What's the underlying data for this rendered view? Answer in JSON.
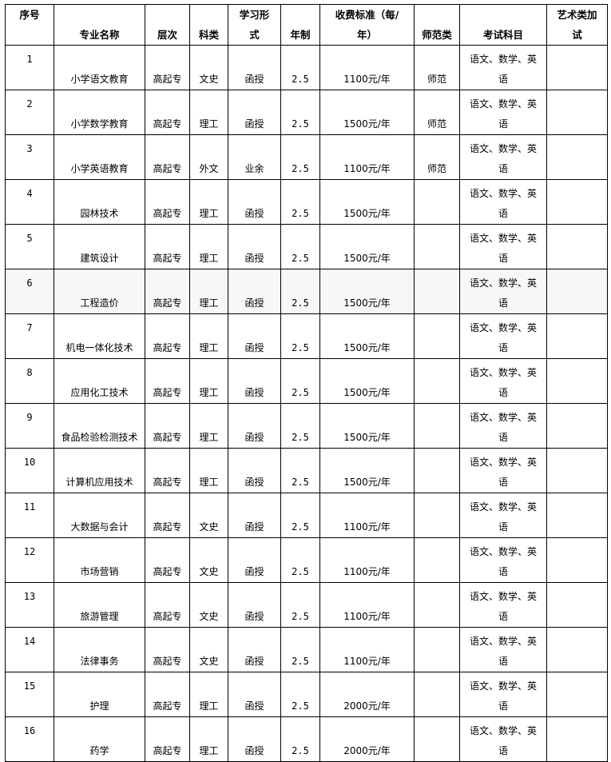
{
  "headers": {
    "no": "序号",
    "major": "专业名称",
    "level": "层次",
    "category": "科类",
    "mode_1": "学习形",
    "mode_2": "式",
    "years": "年制",
    "fee_1": "收费标准（每/",
    "fee_2": "年）",
    "normal": "师范类",
    "subjects": "考试科目",
    "art_1": "艺术类加",
    "art_2": "试"
  },
  "rows": [
    {
      "no": "1",
      "major": "小学语文教育",
      "level": "高起专",
      "category": "文史",
      "mode": "函授",
      "years": "2.5",
      "fee": "1100元/年",
      "normal": "师范",
      "subjects_1": "语文、数学、英",
      "subjects_2": "语",
      "art": ""
    },
    {
      "no": "2",
      "major": "小学数学教育",
      "level": "高起专",
      "category": "理工",
      "mode": "函授",
      "years": "2.5",
      "fee": "1500元/年",
      "normal": "师范",
      "subjects_1": "语文、数学、英",
      "subjects_2": "语",
      "art": ""
    },
    {
      "no": "3",
      "major": "小学英语教育",
      "level": "高起专",
      "category": "外文",
      "mode": "业余",
      "years": "2.5",
      "fee": "1100元/年",
      "normal": "师范",
      "subjects_1": "语文、数学、英",
      "subjects_2": "语",
      "art": ""
    },
    {
      "no": "4",
      "major": "园林技术",
      "level": "高起专",
      "category": "理工",
      "mode": "函授",
      "years": "2.5",
      "fee": "1500元/年",
      "normal": "",
      "subjects_1": "语文、数学、英",
      "subjects_2": "语",
      "art": ""
    },
    {
      "no": "5",
      "major": "建筑设计",
      "level": "高起专",
      "category": "理工",
      "mode": "函授",
      "years": "2.5",
      "fee": "1500元/年",
      "normal": "",
      "subjects_1": "语文、数学、英",
      "subjects_2": "语",
      "art": ""
    },
    {
      "no": "6",
      "major": "工程造价",
      "level": "高起专",
      "category": "理工",
      "mode": "函授",
      "years": "2.5",
      "fee": "1500元/年",
      "normal": "",
      "subjects_1": "语文、数学、英",
      "subjects_2": "语",
      "art": ""
    },
    {
      "no": "7",
      "major": "机电一体化技术",
      "level": "高起专",
      "category": "理工",
      "mode": "函授",
      "years": "2.5",
      "fee": "1500元/年",
      "normal": "",
      "subjects_1": "语文、数学、英",
      "subjects_2": "语",
      "art": ""
    },
    {
      "no": "8",
      "major": "应用化工技术",
      "level": "高起专",
      "category": "理工",
      "mode": "函授",
      "years": "2.5",
      "fee": "1500元/年",
      "normal": "",
      "subjects_1": "语文、数学、英",
      "subjects_2": "语",
      "art": ""
    },
    {
      "no": "9",
      "major": "食品检验检测技术",
      "level": "高起专",
      "category": "理工",
      "mode": "函授",
      "years": "2.5",
      "fee": "1500元/年",
      "normal": "",
      "subjects_1": "语文、数学、英",
      "subjects_2": "语",
      "art": ""
    },
    {
      "no": "10",
      "major": "计算机应用技术",
      "level": "高起专",
      "category": "理工",
      "mode": "函授",
      "years": "2.5",
      "fee": "1500元/年",
      "normal": "",
      "subjects_1": "语文、数学、英",
      "subjects_2": "语",
      "art": ""
    },
    {
      "no": "11",
      "major": "大数据与会计",
      "level": "高起专",
      "category": "文史",
      "mode": "函授",
      "years": "2.5",
      "fee": "1100元/年",
      "normal": "",
      "subjects_1": "语文、数学、英",
      "subjects_2": "语",
      "art": ""
    },
    {
      "no": "12",
      "major": "市场营销",
      "level": "高起专",
      "category": "文史",
      "mode": "函授",
      "years": "2.5",
      "fee": "1100元/年",
      "normal": "",
      "subjects_1": "语文、数学、英",
      "subjects_2": "语",
      "art": ""
    },
    {
      "no": "13",
      "major": "旅游管理",
      "level": "高起专",
      "category": "文史",
      "mode": "函授",
      "years": "2.5",
      "fee": "1100元/年",
      "normal": "",
      "subjects_1": "语文、数学、英",
      "subjects_2": "语",
      "art": ""
    },
    {
      "no": "14",
      "major": "法律事务",
      "level": "高起专",
      "category": "文史",
      "mode": "函授",
      "years": "2.5",
      "fee": "1100元/年",
      "normal": "",
      "subjects_1": "语文、数学、英",
      "subjects_2": "语",
      "art": ""
    },
    {
      "no": "15",
      "major": "护理",
      "level": "高起专",
      "category": "理工",
      "mode": "函授",
      "years": "2.5",
      "fee": "2000元/年",
      "normal": "",
      "subjects_1": "语文、数学、英",
      "subjects_2": "语",
      "art": ""
    },
    {
      "no": "16",
      "major": "药学",
      "level": "高起专",
      "category": "理工",
      "mode": "函授",
      "years": "2.5",
      "fee": "2000元/年",
      "normal": "",
      "subjects_1": "语文、数学、英",
      "subjects_2": "语",
      "art": ""
    }
  ]
}
